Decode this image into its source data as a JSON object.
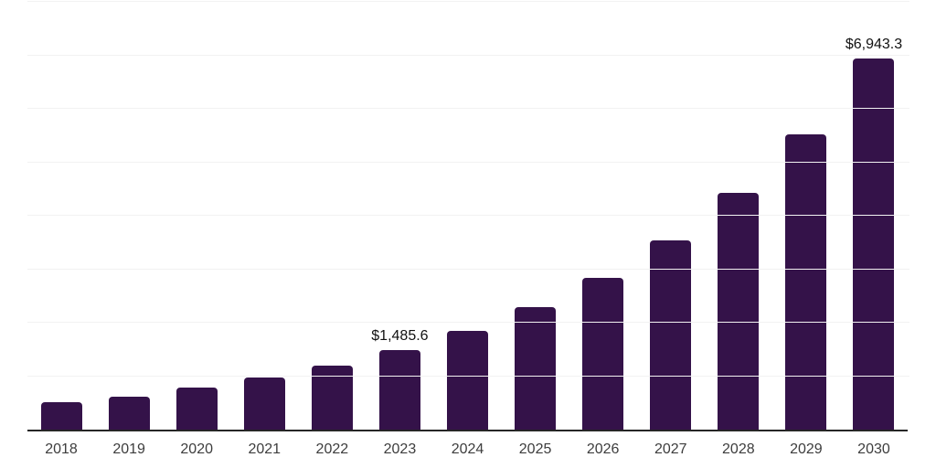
{
  "chart_data": {
    "type": "bar",
    "title": "",
    "xlabel": "",
    "ylabel": "",
    "categories": [
      "2018",
      "2019",
      "2020",
      "2021",
      "2022",
      "2023",
      "2024",
      "2025",
      "2026",
      "2027",
      "2028",
      "2029",
      "2030"
    ],
    "values": [
      510,
      615,
      785,
      975,
      1195,
      1485.6,
      1850,
      2295,
      2840,
      3540,
      4430,
      5525,
      6943.3
    ],
    "data_labels": {
      "2023": "$1,485.6",
      "2030": "$6,943.3"
    },
    "ylim": [
      0,
      8000
    ],
    "gridline_interval": 1000,
    "grid": "horizontal",
    "y_tick_labels": "none",
    "legend_position": "none",
    "colors": {
      "bar": "#341249",
      "axis_line": "#262626",
      "gridline": "#f2f2f2",
      "x_tick_label": "#3d3d3d",
      "data_label": "#111111",
      "background": "#ffffff"
    }
  }
}
